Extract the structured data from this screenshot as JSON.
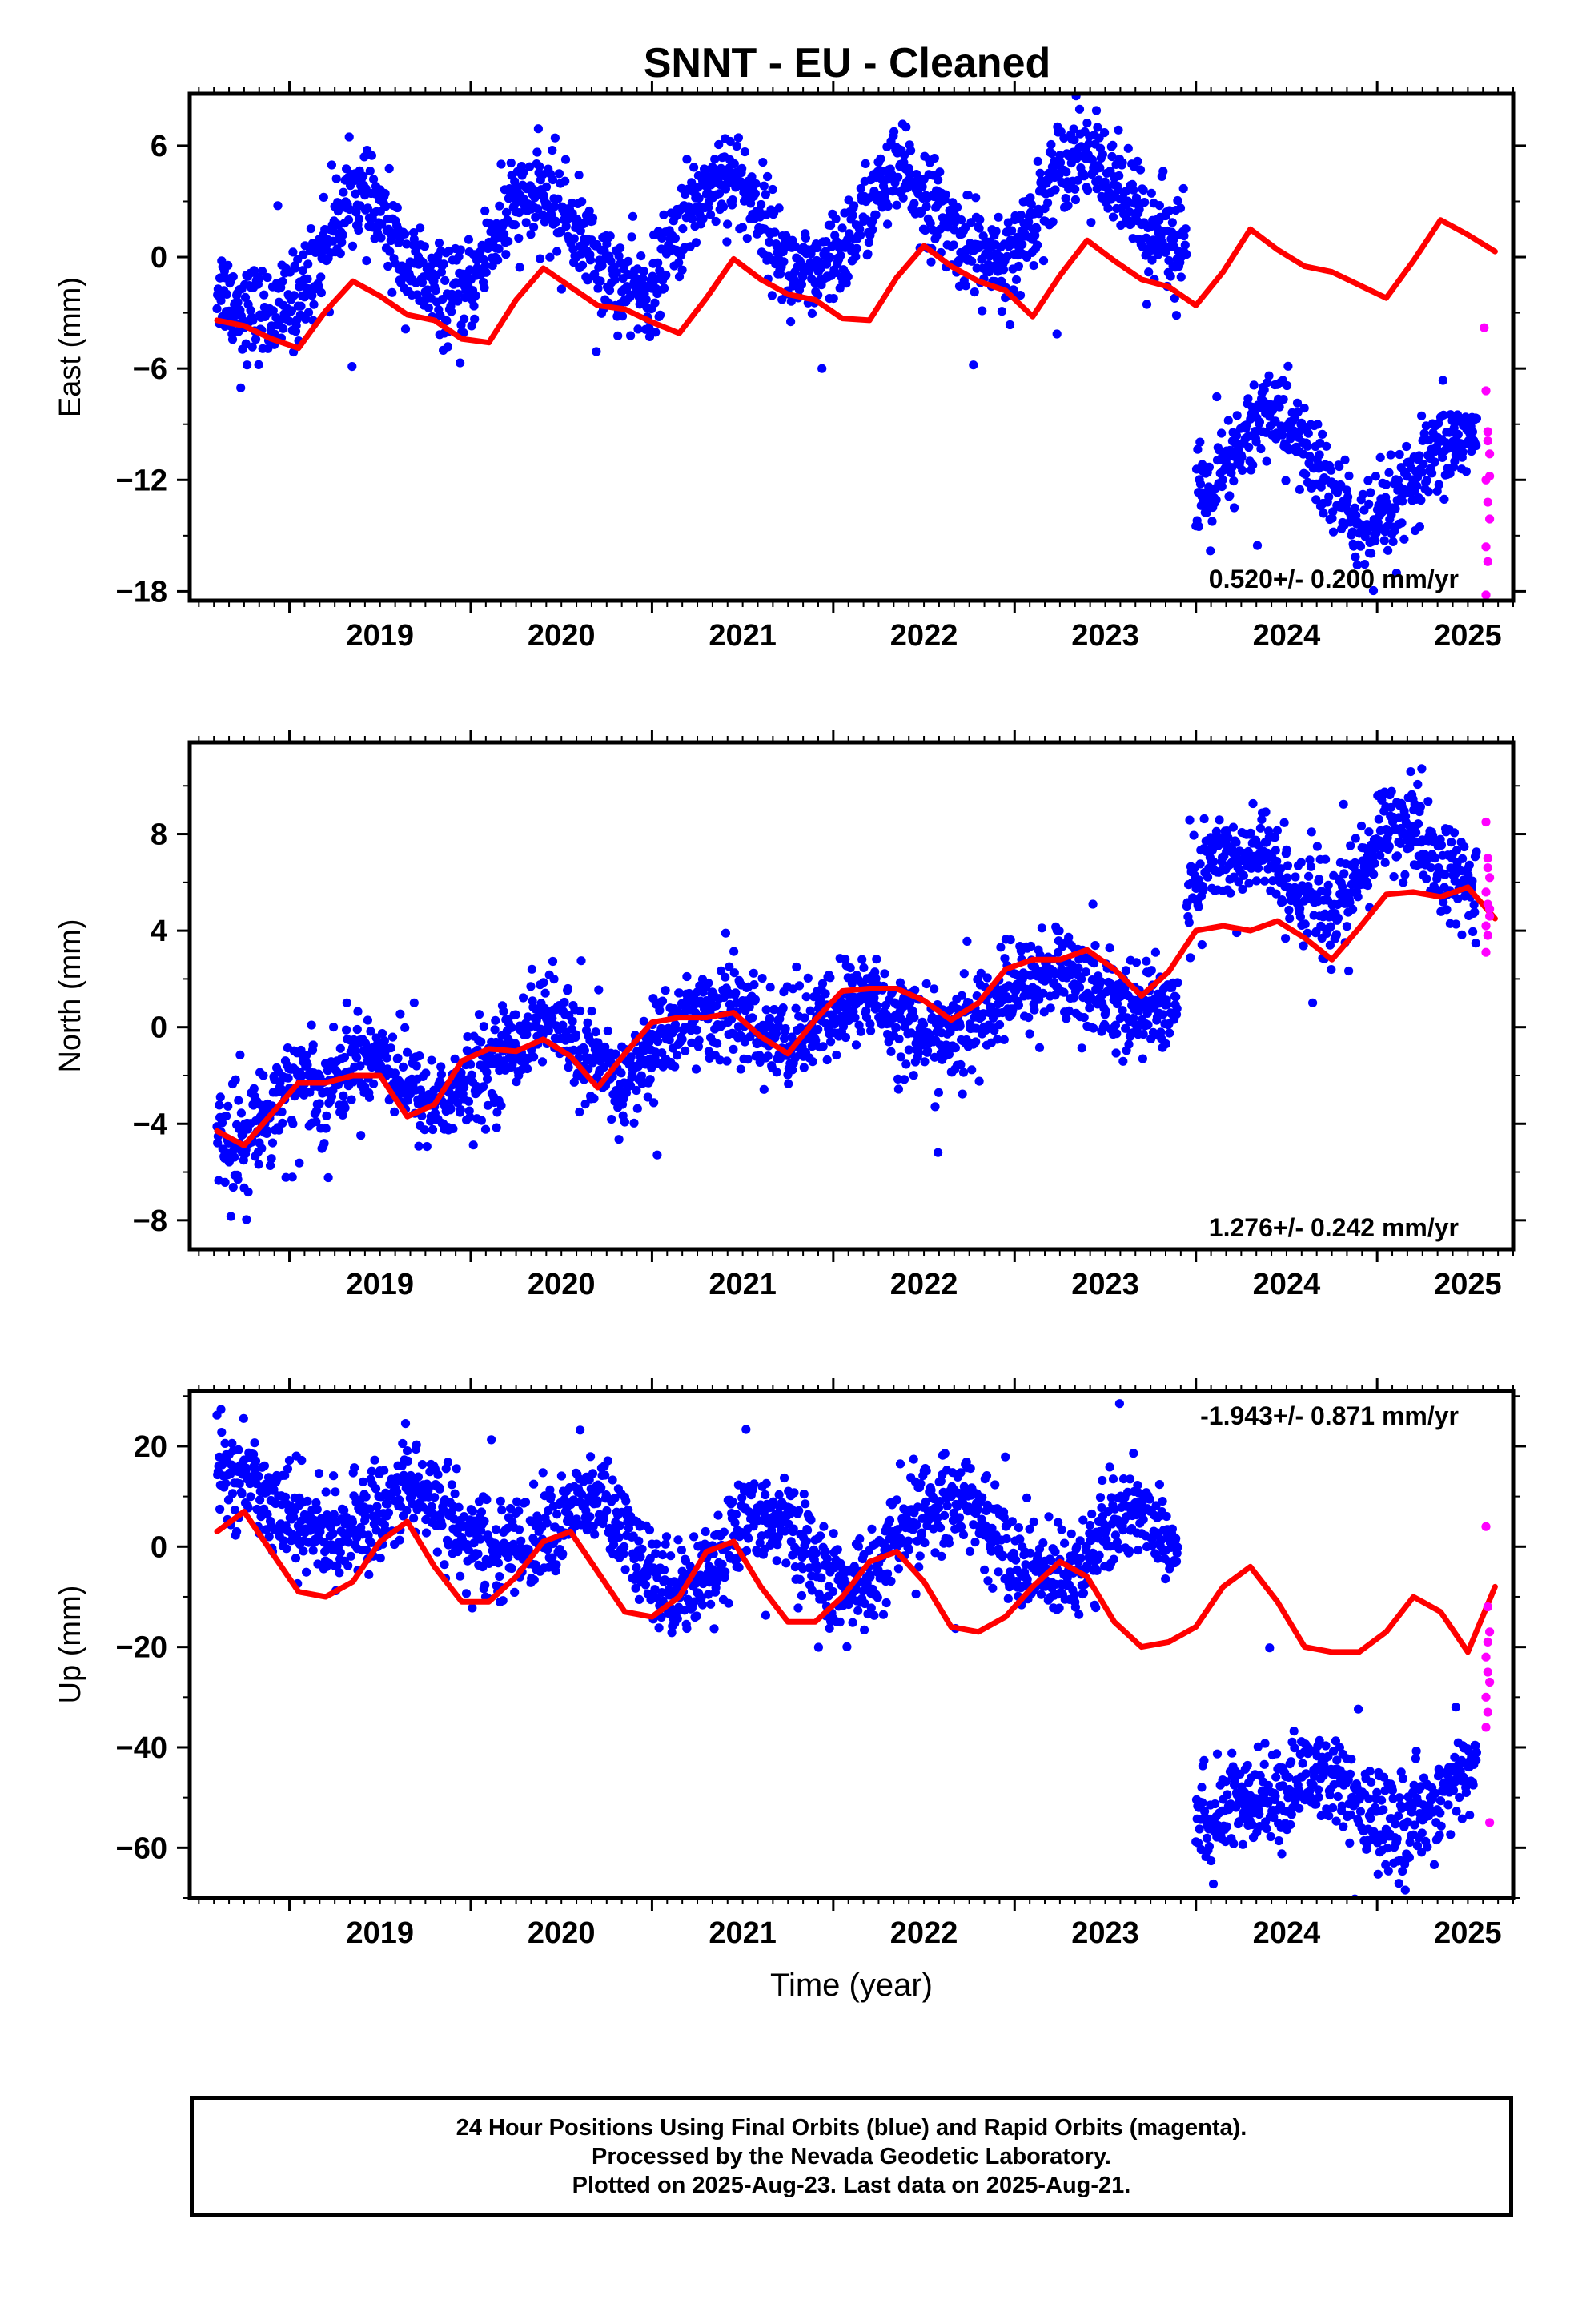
{
  "title": "SNNT  - EU - Cleaned",
  "colors": {
    "final": "#0000ff",
    "rapid": "#ff00ff",
    "model": "#ff0000",
    "axis": "#000000"
  },
  "footer": {
    "line1": "24 Hour Positions Using Final Orbits (blue) and Rapid Orbits (magenta).",
    "line2": "Processed by the Nevada Geodetic Laboratory.",
    "line3": "Plotted on 2025-Aug-23. Last data on 2025-Aug-21."
  },
  "chart_data": [
    {
      "type": "scatter",
      "ylabel": "East (mm)",
      "xlabel": "",
      "xlim": [
        2018.45,
        2025.75
      ],
      "ylim": [
        -18.5,
        8.8
      ],
      "x_ticks": [
        2019,
        2020,
        2021,
        2022,
        2023,
        2024,
        2025
      ],
      "y_ticks": [
        6,
        0,
        -6,
        -12,
        -18
      ],
      "rate_label": "0.520+/- 0.200 mm/yr",
      "rate_position": "bottom-right",
      "series": [
        {
          "name": "Final Orbits (blue)",
          "segments": [
            {
              "x": [
                2018.6,
                2018.75,
                2018.9,
                2019.05,
                2019.2,
                2019.35,
                2019.5,
                2019.65,
                2019.8,
                2019.95,
                2020.1,
                2020.25,
                2020.4,
                2020.55,
                2020.7,
                2020.85,
                2021.0,
                2021.15,
                2021.3,
                2021.45,
                2021.6,
                2021.75,
                2021.9,
                2022.05,
                2022.2,
                2022.35,
                2022.5,
                2022.65,
                2022.8,
                2022.95,
                2023.1,
                2023.25,
                2023.4,
                2023.55,
                2023.7,
                2023.95
              ],
              "y": [
                -1.5,
                -2.8,
                -3.2,
                -2.2,
                0.8,
                3.6,
                2.3,
                -0.5,
                -1.8,
                -2.6,
                0.6,
                2.9,
                3.2,
                2.1,
                -0.3,
                -1.6,
                -1.9,
                1.5,
                3.8,
                4.5,
                2.4,
                -0.6,
                -1.5,
                0.2,
                2.8,
                4.6,
                3.5,
                1.4,
                0.2,
                -0.9,
                2.0,
                5.2,
                5.8,
                3.6,
                2.0,
                0.8
              ]
            },
            {
              "x": [
                2024.0,
                2024.1,
                2024.2,
                2024.3,
                2024.4,
                2024.5,
                2024.6,
                2024.7,
                2024.8,
                2024.9,
                2025.0,
                2025.1,
                2025.2,
                2025.3,
                2025.4,
                2025.5,
                2025.55
              ],
              "y": [
                -13.5,
                -12.6,
                -11.2,
                -9.6,
                -8.0,
                -8.8,
                -10.4,
                -11.8,
                -13.2,
                -14.6,
                -14.8,
                -13.4,
                -12.4,
                -11.0,
                -10.2,
                -9.4,
                -10.0
              ]
            }
          ]
        },
        {
          "name": "Rapid Orbits (magenta)",
          "x": [
            2025.59,
            2025.6,
            2025.61,
            2025.62,
            2025.6,
            2025.61,
            2025.62,
            2025.6,
            2025.61,
            2025.6,
            2025.62,
            2025.61
          ],
          "y": [
            -3.8,
            -7.2,
            -9.4,
            -10.6,
            -12.0,
            -13.2,
            -14.1,
            -15.6,
            -16.4,
            -18.2,
            -11.8,
            -9.9
          ]
        },
        {
          "name": "Model",
          "x": [
            2018.6,
            2018.75,
            2018.9,
            2019.05,
            2019.2,
            2019.35,
            2019.5,
            2019.65,
            2019.8,
            2019.95,
            2020.1,
            2020.25,
            2020.4,
            2020.55,
            2020.7,
            2020.85,
            2021.0,
            2021.15,
            2021.3,
            2021.45,
            2021.6,
            2021.75,
            2021.9,
            2022.05,
            2022.2,
            2022.35,
            2022.5,
            2022.65,
            2022.8,
            2022.95,
            2023.1,
            2023.25,
            2023.4,
            2023.55,
            2023.7,
            2023.85,
            2024.0,
            2024.15,
            2024.3,
            2024.45,
            2024.6,
            2024.75,
            2024.9,
            2025.05,
            2025.2,
            2025.35,
            2025.5,
            2025.65
          ],
          "y": [
            -3.4,
            -3.7,
            -4.4,
            -4.9,
            -2.9,
            -1.3,
            -2.1,
            -3.1,
            -3.4,
            -4.4,
            -4.6,
            -2.3,
            -0.6,
            -1.6,
            -2.6,
            -2.8,
            -3.5,
            -4.1,
            -2.2,
            -0.1,
            -1.2,
            -2.0,
            -2.3,
            -3.3,
            -3.4,
            -1.1,
            0.6,
            -0.5,
            -1.3,
            -1.8,
            -3.2,
            -1.0,
            0.9,
            -0.2,
            -1.2,
            -1.6,
            -2.6,
            -0.8,
            1.5,
            0.4,
            -0.5,
            -0.8,
            -1.5,
            -2.2,
            -0.2,
            2.0,
            1.2,
            0.3
          ]
        }
      ]
    },
    {
      "type": "scatter",
      "ylabel": "North (mm)",
      "xlabel": "",
      "xlim": [
        2018.45,
        2025.75
      ],
      "ylim": [
        -9.2,
        11.8
      ],
      "x_ticks": [
        2019,
        2020,
        2021,
        2022,
        2023,
        2024,
        2025
      ],
      "y_ticks": [
        8,
        4,
        0,
        -4,
        -8
      ],
      "rate_label": "1.276+/- 0.242 mm/yr",
      "rate_position": "bottom-right",
      "series": [
        {
          "name": "Final Orbits (blue)",
          "segments": [
            {
              "x": [
                2018.6,
                2018.75,
                2018.9,
                2019.05,
                2019.2,
                2019.35,
                2019.5,
                2019.65,
                2019.8,
                2019.95,
                2020.1,
                2020.25,
                2020.4,
                2020.55,
                2020.7,
                2020.85,
                2021.0,
                2021.15,
                2021.3,
                2021.45,
                2021.6,
                2021.75,
                2021.9,
                2022.05,
                2022.2,
                2022.35,
                2022.5,
                2022.65,
                2022.8,
                2022.95,
                2023.1,
                2023.25,
                2023.4,
                2023.55,
                2023.7,
                2023.9
              ],
              "y": [
                -4.6,
                -4.8,
                -3.2,
                -2.0,
                -2.6,
                -1.4,
                -1.0,
                -2.4,
                -3.2,
                -2.6,
                -1.6,
                -0.6,
                0.6,
                -0.4,
                -1.8,
                -2.4,
                -1.0,
                0.2,
                0.6,
                0.8,
                -0.2,
                -0.6,
                0.0,
                0.8,
                1.4,
                0.4,
                -0.3,
                -0.6,
                0.4,
                1.2,
                2.0,
                2.4,
                1.8,
                1.2,
                0.6,
                1.0
              ]
            },
            {
              "x": [
                2023.95,
                2024.05,
                2024.15,
                2024.25,
                2024.35,
                2024.45,
                2024.55,
                2024.65,
                2024.75,
                2024.85,
                2024.95,
                2025.05,
                2025.15,
                2025.25,
                2025.35,
                2025.45,
                2025.55
              ],
              "y": [
                5.2,
                6.8,
                7.2,
                6.6,
                7.4,
                6.4,
                5.8,
                5.2,
                4.6,
                5.6,
                6.8,
                8.6,
                8.2,
                7.4,
                6.6,
                6.0,
                5.4
              ]
            }
          ]
        },
        {
          "name": "Rapid Orbits (magenta)",
          "x": [
            2025.6,
            2025.61,
            2025.62,
            2025.6,
            2025.61,
            2025.62,
            2025.6,
            2025.61,
            2025.6,
            2025.62,
            2025.61
          ],
          "y": [
            8.5,
            7.0,
            6.2,
            5.6,
            5.1,
            4.6,
            4.2,
            3.8,
            3.1,
            4.9,
            6.6
          ]
        },
        {
          "name": "Model",
          "x": [
            2018.6,
            2018.75,
            2018.9,
            2019.05,
            2019.2,
            2019.35,
            2019.5,
            2019.65,
            2019.8,
            2019.95,
            2020.1,
            2020.25,
            2020.4,
            2020.55,
            2020.7,
            2020.85,
            2021.0,
            2021.15,
            2021.3,
            2021.45,
            2021.6,
            2021.75,
            2021.9,
            2022.05,
            2022.2,
            2022.35,
            2022.5,
            2022.65,
            2022.8,
            2022.95,
            2023.1,
            2023.25,
            2023.4,
            2023.55,
            2023.7,
            2023.85,
            2024.0,
            2024.15,
            2024.3,
            2024.45,
            2024.6,
            2024.75,
            2024.9,
            2025.05,
            2025.2,
            2025.35,
            2025.5,
            2025.65
          ],
          "y": [
            -4.3,
            -4.9,
            -3.6,
            -2.3,
            -2.3,
            -2.0,
            -2.0,
            -3.7,
            -3.2,
            -1.4,
            -0.9,
            -1.0,
            -0.5,
            -1.2,
            -2.5,
            -1.1,
            0.2,
            0.4,
            0.4,
            0.6,
            -0.4,
            -1.1,
            0.3,
            1.5,
            1.6,
            1.6,
            1.1,
            0.3,
            1.0,
            2.4,
            2.8,
            2.8,
            3.2,
            2.4,
            1.3,
            2.3,
            4.0,
            4.2,
            4.0,
            4.4,
            3.7,
            2.8,
            4.1,
            5.5,
            5.6,
            5.4,
            5.8,
            4.5
          ]
        }
      ]
    },
    {
      "type": "scatter",
      "ylabel": "Up (mm)",
      "xlabel": "Time (year)",
      "xlim": [
        2018.45,
        2025.75
      ],
      "ylim": [
        -70,
        31
      ],
      "x_ticks": [
        2019,
        2020,
        2021,
        2022,
        2023,
        2024,
        2025
      ],
      "y_ticks": [
        20,
        0,
        -20,
        -40,
        -60
      ],
      "rate_label": "-1.943+/- 0.871 mm/yr",
      "rate_position": "top-right",
      "series": [
        {
          "name": "Final Orbits (blue)",
          "segments": [
            {
              "x": [
                2018.6,
                2018.75,
                2018.9,
                2019.05,
                2019.2,
                2019.35,
                2019.5,
                2019.65,
                2019.8,
                2019.95,
                2020.1,
                2020.25,
                2020.4,
                2020.55,
                2020.7,
                2020.85,
                2021.0,
                2021.15,
                2021.3,
                2021.45,
                2021.6,
                2021.75,
                2021.9,
                2022.05,
                2022.2,
                2022.35,
                2022.5,
                2022.65,
                2022.8,
                2022.95,
                2023.1,
                2023.25,
                2023.4,
                2023.55,
                2023.7,
                2023.9
              ],
              "y": [
                16,
                14,
                10,
                5,
                2,
                3,
                8,
                12,
                10,
                3,
                -1,
                0,
                2,
                7,
                10,
                2,
                -6,
                -9,
                -5,
                2,
                7,
                4,
                -4,
                -9,
                -7,
                1,
                7,
                10,
                7,
                -1,
                -6,
                -5,
                -2,
                4,
                8,
                1
              ]
            },
            {
              "x": [
                2024.0,
                2024.1,
                2024.2,
                2024.3,
                2024.4,
                2024.5,
                2024.6,
                2024.7,
                2024.8,
                2024.9,
                2025.0,
                2025.1,
                2025.2,
                2025.3,
                2025.4,
                2025.5,
                2025.55
              ],
              "y": [
                -53,
                -55,
                -51,
                -52,
                -50,
                -48,
                -46,
                -45,
                -48,
                -53,
                -55,
                -56,
                -54,
                -51,
                -48,
                -45,
                -42
              ]
            }
          ]
        },
        {
          "name": "Rapid Orbits (magenta)",
          "x": [
            2025.6,
            2025.61,
            2025.62,
            2025.6,
            2025.61,
            2025.62,
            2025.6,
            2025.61,
            2025.6,
            2025.62,
            2025.61
          ],
          "y": [
            4,
            -12,
            -17,
            -22,
            -25,
            -27,
            -30,
            -33,
            -36,
            -55,
            -19
          ]
        },
        {
          "name": "Model",
          "x": [
            2018.6,
            2018.75,
            2018.9,
            2019.05,
            2019.2,
            2019.35,
            2019.5,
            2019.65,
            2019.8,
            2019.95,
            2020.1,
            2020.25,
            2020.4,
            2020.55,
            2020.7,
            2020.85,
            2021.0,
            2021.15,
            2021.3,
            2021.45,
            2021.6,
            2021.75,
            2021.9,
            2022.05,
            2022.2,
            2022.35,
            2022.5,
            2022.65,
            2022.8,
            2022.95,
            2023.1,
            2023.25,
            2023.4,
            2023.55,
            2023.7,
            2023.85,
            2024.0,
            2024.15,
            2024.3,
            2024.45,
            2024.6,
            2024.75,
            2024.9,
            2025.05,
            2025.2,
            2025.35,
            2025.5,
            2025.65
          ],
          "y": [
            3,
            7,
            -1,
            -9,
            -10,
            -7,
            1,
            5,
            -4,
            -11,
            -11,
            -6,
            1,
            3,
            -5,
            -13,
            -14,
            -10,
            -1,
            1,
            -8,
            -15,
            -15,
            -10,
            -3,
            -1,
            -7,
            -16,
            -17,
            -14,
            -8,
            -3,
            -6,
            -15,
            -20,
            -19,
            -16,
            -8,
            -4,
            -11,
            -20,
            -21,
            -21,
            -17,
            -10,
            -13,
            -21,
            -8
          ]
        }
      ]
    }
  ]
}
